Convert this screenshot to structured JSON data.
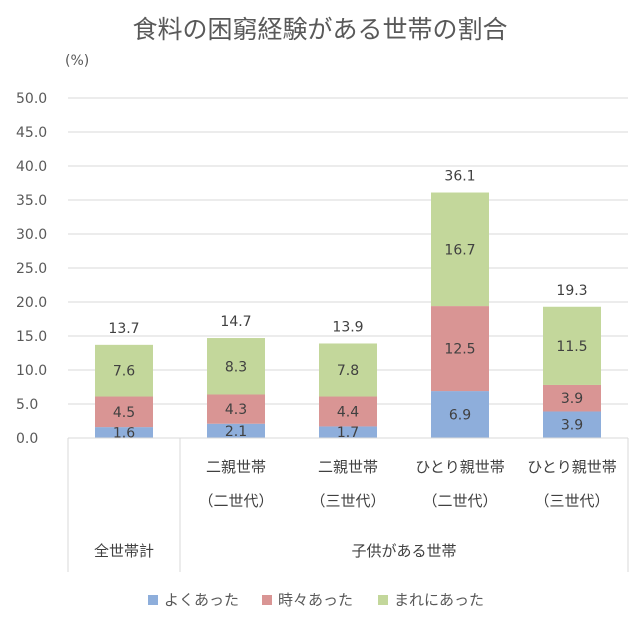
{
  "chart_data": {
    "type": "bar",
    "stacked": true,
    "title": "食料の困窮経験がある世帯の割合",
    "ylabel": "(%)",
    "ylim": [
      0,
      50
    ],
    "yticks": [
      "0.0",
      "5.0",
      "10.0",
      "15.0",
      "20.0",
      "25.0",
      "30.0",
      "35.0",
      "40.0",
      "45.0",
      "50.0"
    ],
    "grid": true,
    "legend_position": "bottom",
    "categories": [
      {
        "line1": "",
        "line2": "",
        "group": "全世帯計"
      },
      {
        "line1": "二親世帯",
        "line2": "（二世代）",
        "group": "子供がある世帯"
      },
      {
        "line1": "二親世帯",
        "line2": "（三世代）",
        "group": "子供がある世帯"
      },
      {
        "line1": "ひとり親世帯",
        "line2": "（二世代）",
        "group": "子供がある世帯"
      },
      {
        "line1": "ひとり親世帯",
        "line2": "（三世代）",
        "group": "子供がある世帯"
      }
    ],
    "groups": [
      {
        "label": "全世帯計",
        "span": 1
      },
      {
        "label": "子供がある世帯",
        "span": 4
      }
    ],
    "series": [
      {
        "name": "よくあった",
        "color": "#8eaedb",
        "values": [
          1.6,
          2.1,
          1.7,
          6.9,
          3.9
        ]
      },
      {
        "name": "時々あった",
        "color": "#d99594",
        "values": [
          4.5,
          4.3,
          4.4,
          12.5,
          3.9
        ]
      },
      {
        "name": "まれにあった",
        "color": "#c3d79b",
        "values": [
          7.6,
          8.3,
          7.8,
          16.7,
          11.5
        ]
      }
    ],
    "totals": [
      "13.7",
      "14.7",
      "13.9",
      "36.1",
      "19.3"
    ]
  }
}
